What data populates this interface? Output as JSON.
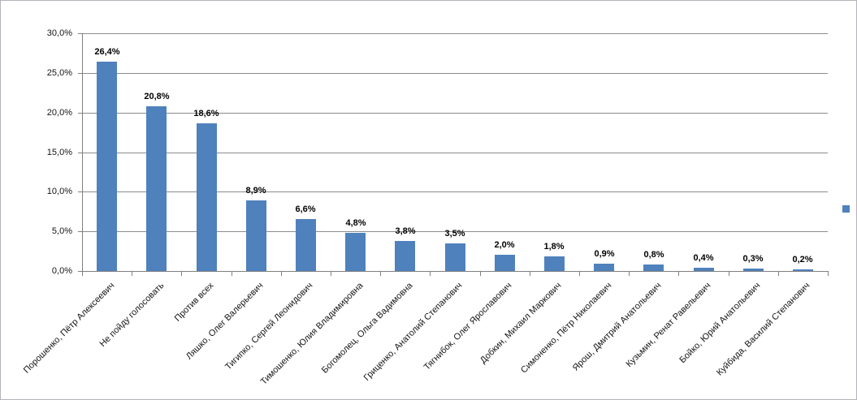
{
  "chart_data": {
    "type": "bar",
    "title": "",
    "xlabel": "",
    "ylabel": "",
    "categories": [
      "Порошенко, Пётр Алексеевич",
      "Не пойду голосовать",
      "Против всех",
      "Ляшко, Олег Валерьевич",
      "Тигипко, Сергей Леонидович",
      "Тимошенко, Юлия Владимировна",
      "Богомолец, Ольга Вадимовна",
      "Гриценко, Анатолий Степанович",
      "Тягнибок, Олег Ярославович",
      "Добкин, Михаил Маркович",
      "Симоненко, Пётр Николаевич",
      "Ярош, Дмитрий Анатольевич",
      "Кузьмин, Ренат Равельевич",
      "Бойко, Юрий Анатольевич",
      "Куйбида, Василий Степанович"
    ],
    "values": [
      26.4,
      20.8,
      18.6,
      8.9,
      6.6,
      4.8,
      3.8,
      3.5,
      2.0,
      1.8,
      0.9,
      0.8,
      0.4,
      0.3,
      0.2
    ],
    "value_labels": [
      "26,4%",
      "20,8%",
      "18,6%",
      "8,9%",
      "6,6%",
      "4,8%",
      "3,8%",
      "3,5%",
      "2,0%",
      "1,8%",
      "0,9%",
      "0,8%",
      "0,4%",
      "0,3%",
      "0,2%"
    ],
    "ylim": [
      0,
      30
    ],
    "yticks": {
      "values": [
        0,
        5,
        10,
        15,
        20,
        25,
        30
      ],
      "labels": [
        "0,0%",
        "5,0%",
        "10,0%",
        "15,0%",
        "20,0%",
        "25,0%",
        "30,0%"
      ]
    },
    "grid": true,
    "legend": {
      "visible": true,
      "position": "right",
      "marker_color": "#4F81BD"
    },
    "bar_color": "#4F81BD",
    "colors": {
      "gridline": "#8C8C8C",
      "axis": "#7F7F7F",
      "tick_label": "#141414",
      "data_label": "#000000",
      "frame_border": "#B3B3BA"
    }
  }
}
